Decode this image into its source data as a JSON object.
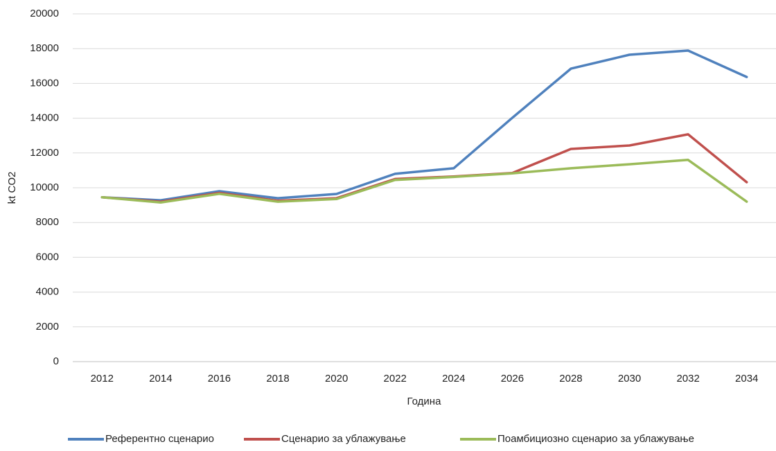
{
  "chart_data": {
    "type": "line",
    "x_label": "Година",
    "y_label": "kt CO2",
    "categories": [
      "2012",
      "2014",
      "2016",
      "2018",
      "2020",
      "2022",
      "2024",
      "2026",
      "2028",
      "2030",
      "2032",
      "2034"
    ],
    "ylim": [
      0,
      20000
    ],
    "yticks": [
      0,
      2000,
      4000,
      6000,
      8000,
      10000,
      12000,
      14000,
      16000,
      18000,
      20000
    ],
    "grid": true,
    "legend": "bottom",
    "series": [
      {
        "name": "Референтно сценарио",
        "color": "#4f81bd",
        "values": [
          9450,
          9280,
          9800,
          9400,
          9640,
          10800,
          11120,
          14020,
          16850,
          17650,
          17890,
          16370
        ]
      },
      {
        "name": "Сценарио за ублажување",
        "color": "#c0504d",
        "values": [
          9450,
          9200,
          9700,
          9250,
          9400,
          10500,
          10650,
          10850,
          12230,
          12430,
          13070,
          10320
        ]
      },
      {
        "name": "Поамбициозно сценарио за ублажување",
        "color": "#9bbb59",
        "values": [
          9450,
          9150,
          9650,
          9200,
          9350,
          10450,
          10620,
          10830,
          11120,
          11350,
          11600,
          9200
        ]
      }
    ]
  }
}
